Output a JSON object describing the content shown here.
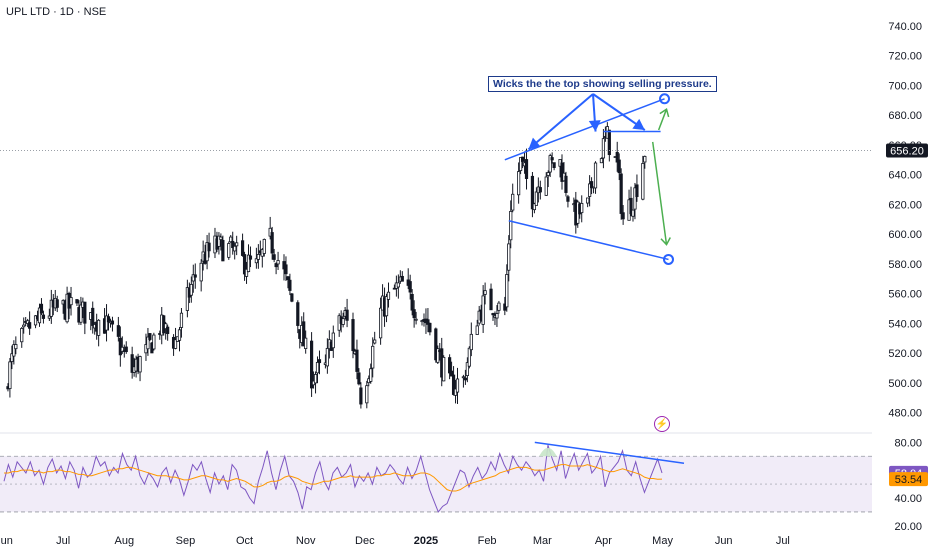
{
  "header": {
    "title": "UPL LTD · 1D · NSE"
  },
  "annotation": {
    "text": "Wicks the the top showing selling pressure."
  },
  "indicator_icon": "lightning-bolt-icon",
  "chart_data": [
    {
      "type": "candlestick",
      "title": "UPL LTD · 1D · NSE",
      "xlabel": "",
      "ylabel": "",
      "x_ticks": [
        "Jun",
        "Jul",
        "Aug",
        "Sep",
        "Oct",
        "Nov",
        "Dec",
        "2025",
        "Feb",
        "Mar",
        "Apr",
        "May",
        "Jun",
        "Jul"
      ],
      "y_ticks": [
        "480.00",
        "500.00",
        "520.00",
        "540.00",
        "560.00",
        "580.00",
        "600.00",
        "620.00",
        "640.00",
        "660.00",
        "680.00",
        "700.00",
        "720.00",
        "740.00"
      ],
      "ylim": [
        467,
        748
      ],
      "last_price": "656.20",
      "close_path": [
        [
          "2024-06-01",
          495
        ],
        [
          "2024-06-06",
          520
        ],
        [
          "2024-06-14",
          538
        ],
        [
          "2024-06-24",
          548
        ],
        [
          "2024-07-04",
          551
        ],
        [
          "2024-07-12",
          547
        ],
        [
          "2024-07-22",
          540
        ],
        [
          "2024-07-29",
          527
        ],
        [
          "2024-08-05",
          508
        ],
        [
          "2024-08-12",
          520
        ],
        [
          "2024-08-19",
          538
        ],
        [
          "2024-08-27",
          528
        ],
        [
          "2024-09-04",
          565
        ],
        [
          "2024-09-09",
          583
        ],
        [
          "2024-09-16",
          592
        ],
        [
          "2024-09-24",
          590
        ],
        [
          "2024-09-30",
          582
        ],
        [
          "2024-10-07",
          578
        ],
        [
          "2024-10-14",
          596
        ],
        [
          "2024-10-21",
          573
        ],
        [
          "2024-10-25",
          555
        ],
        [
          "2024-10-30",
          532
        ],
        [
          "2024-11-04",
          505
        ],
        [
          "2024-11-11",
          510
        ],
        [
          "2024-11-14",
          530
        ],
        [
          "2024-11-21",
          545
        ],
        [
          "2024-11-26",
          520
        ],
        [
          "2024-11-29",
          492
        ],
        [
          "2024-12-03",
          510
        ],
        [
          "2024-12-09",
          548
        ],
        [
          "2024-12-16",
          562
        ],
        [
          "2024-12-20",
          566
        ],
        [
          "2024-12-26",
          552
        ],
        [
          "2025-01-02",
          540
        ],
        [
          "2025-01-07",
          520
        ],
        [
          "2025-01-13",
          498
        ],
        [
          "2025-01-20",
          502
        ],
        [
          "2025-01-27",
          545
        ],
        [
          "2025-01-31",
          555
        ],
        [
          "2025-02-05",
          552
        ],
        [
          "2025-02-10",
          548
        ],
        [
          "2025-02-13",
          620
        ],
        [
          "2025-02-18",
          648
        ],
        [
          "2025-02-24",
          625
        ],
        [
          "2025-03-03",
          645
        ],
        [
          "2025-03-10",
          648
        ],
        [
          "2025-03-17",
          612
        ],
        [
          "2025-03-24",
          618
        ],
        [
          "2025-03-28",
          648
        ],
        [
          "2025-04-03",
          665
        ],
        [
          "2025-04-08",
          645
        ],
        [
          "2025-04-11",
          610
        ],
        [
          "2025-04-17",
          628
        ],
        [
          "2025-04-22",
          656
        ]
      ],
      "trendlines": [
        {
          "from": [
            "2025-02-10",
            650
          ],
          "to": [
            "2025-05-02",
            691
          ],
          "color": "#2962ff"
        },
        {
          "from": [
            "2025-04-01",
            669
          ],
          "to": [
            "2025-04-30",
            669
          ],
          "color": "#2962ff"
        },
        {
          "from": [
            "2025-02-12",
            609
          ],
          "to": [
            "2025-05-04",
            583
          ],
          "color": "#2962ff"
        }
      ],
      "projection_arrows": [
        {
          "from": [
            "2025-04-29",
            670
          ],
          "to": [
            "2025-05-03",
            684
          ],
          "color": "#4caf50"
        },
        {
          "from": [
            "2025-04-26",
            662
          ],
          "to": [
            "2025-05-03",
            593
          ],
          "color": "#4caf50"
        }
      ],
      "colors": {
        "candle": "#131722",
        "trend": "#2962ff",
        "arrow": "#4caf50",
        "crosshair": "#9ba0a8"
      }
    },
    {
      "type": "line",
      "title": "",
      "y_ticks": [
        "20.00",
        "40.00",
        "60.00",
        "80.00"
      ],
      "ylim": [
        17,
        86
      ],
      "band": [
        30,
        70
      ],
      "series": [
        {
          "name": "",
          "color": "#7e57c2",
          "last_value": "58.04",
          "values": [
            52,
            64,
            55,
            66,
            62,
            58,
            66,
            56,
            60,
            50,
            62,
            68,
            58,
            63,
            54,
            66,
            60,
            47,
            62,
            55,
            58,
            70,
            63,
            66,
            56,
            62,
            58,
            72,
            64,
            60,
            70,
            56,
            50,
            58,
            54,
            48,
            58,
            62,
            51,
            60,
            53,
            42,
            52,
            64,
            60,
            66,
            54,
            44,
            58,
            50,
            56,
            46,
            64,
            60,
            48,
            46,
            40,
            36,
            52,
            62,
            74,
            58,
            46,
            60,
            70,
            56,
            52,
            44,
            32,
            48,
            46,
            58,
            66,
            52,
            46,
            58,
            62,
            55,
            58,
            64,
            48,
            56,
            52,
            58,
            50,
            62,
            56,
            58,
            64,
            60,
            54,
            50,
            62,
            54,
            60,
            70,
            58,
            46,
            38,
            30,
            34,
            36,
            44,
            52,
            60,
            58,
            48,
            56,
            62,
            54,
            58,
            66,
            60,
            72,
            64,
            58,
            70,
            64,
            60,
            66,
            62,
            56,
            60,
            52,
            78,
            68,
            60,
            74,
            54,
            64,
            72,
            60,
            66,
            72,
            58,
            62,
            70,
            48,
            58,
            62,
            66,
            74,
            60,
            56,
            66,
            54,
            44,
            52,
            60,
            68,
            58
          ]
        },
        {
          "name": "",
          "color": "#ff9800",
          "last_value": "53.54",
          "values": [
            58,
            58,
            59,
            59,
            60,
            60,
            60,
            59,
            59,
            58,
            59,
            59,
            60,
            60,
            59,
            59,
            58,
            57,
            57,
            56,
            56,
            57,
            58,
            59,
            60,
            60,
            61,
            61,
            62,
            62,
            61,
            60,
            59,
            58,
            57,
            56,
            56,
            56,
            55,
            55,
            54,
            53,
            53,
            54,
            55,
            56,
            56,
            55,
            54,
            53,
            53,
            52,
            53,
            54,
            53,
            52,
            50,
            48,
            48,
            49,
            51,
            52,
            52,
            53,
            55,
            56,
            55,
            54,
            52,
            51,
            50,
            50,
            51,
            52,
            52,
            53,
            54,
            55,
            55,
            56,
            55,
            55,
            55,
            55,
            55,
            56,
            56,
            57,
            57,
            58,
            57,
            56,
            56,
            56,
            57,
            58,
            58,
            57,
            55,
            52,
            49,
            46,
            45,
            45,
            46,
            48,
            50,
            51,
            52,
            53,
            54,
            55,
            56,
            58,
            59,
            60,
            61,
            62,
            62,
            62,
            61,
            60,
            60,
            60,
            61,
            62,
            63,
            64,
            64,
            63,
            63,
            63,
            63,
            64,
            63,
            62,
            61,
            60,
            59,
            59,
            60,
            61,
            60,
            59,
            58,
            57,
            55,
            54,
            54,
            53.5,
            53.54
          ]
        }
      ],
      "trendline": {
        "from_index": 121,
        "from_value": 80,
        "to_index": 160,
        "to_value": 65,
        "color": "#2962ff"
      }
    }
  ]
}
